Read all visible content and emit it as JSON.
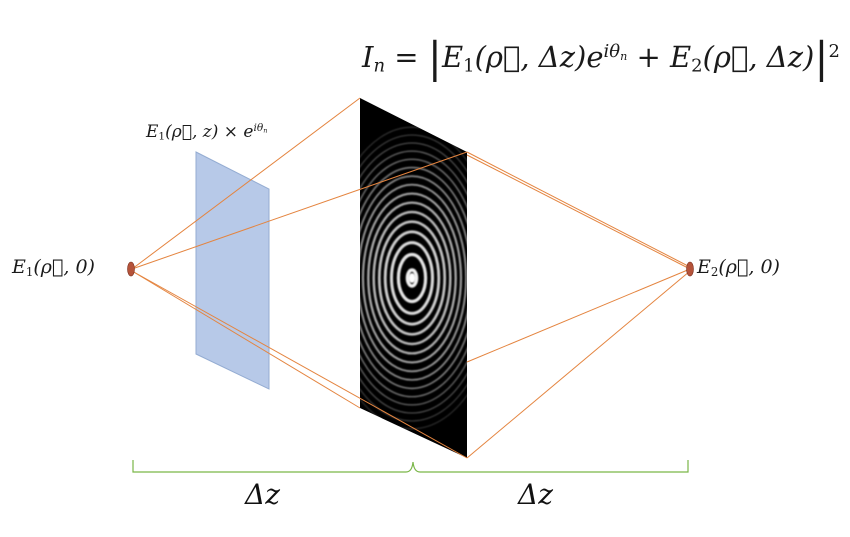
{
  "formula": {
    "lhs": "I",
    "lhs_sub": "n",
    "eq": "=",
    "t1": "E",
    "t1_sub": "1",
    "t1_args": "(ρ⃗, Δz)e",
    "t1_exp": "iθ",
    "t1_exp_sub": "n",
    "plus": "+",
    "t2": "E",
    "t2_sub": "2",
    "t2_args": "(ρ⃗, Δz)",
    "power": "2"
  },
  "modulation_label": {
    "base": "E",
    "sub": "1",
    "args": "(ρ⃗, z) × e",
    "exp": "iθ",
    "exp_sub": "n"
  },
  "source1": {
    "base": "E",
    "sub": "1",
    "args": "(ρ⃗, 0)"
  },
  "source2": {
    "base": "E",
    "sub": "2",
    "args": "(ρ⃗, 0)"
  },
  "distance_left": "Δz",
  "distance_right": "Δz",
  "colors": {
    "ray": "#e4843f",
    "phase_plate_fill": "#b4c7e7",
    "phase_plate_stroke": "#8fa8d0",
    "source": "#b5533a",
    "bracket": "#7ab648",
    "screen": "#000000",
    "fringe": "#ffffff"
  }
}
